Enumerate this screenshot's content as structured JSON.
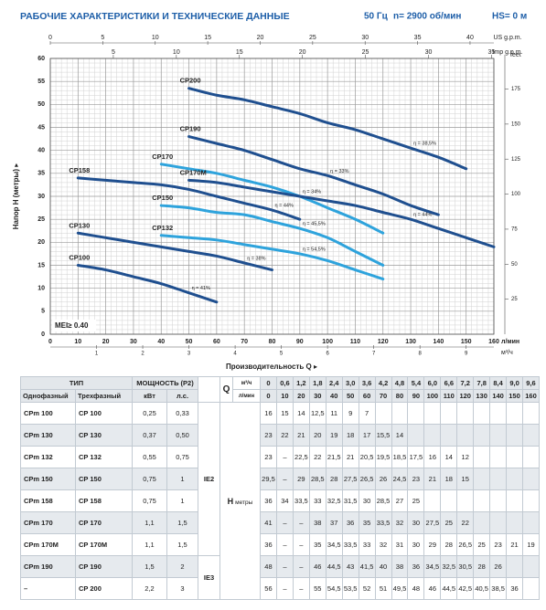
{
  "chart_data": {
    "type": "line",
    "title": "РАБОЧИЕ ХАРАКТЕРИСТИКИ И ТЕХНИЧЕСКИЕ ДАННЫЕ",
    "frequency": "50 Гц",
    "speed": "n= 2900 об/мин",
    "suction_head": "HS= 0 м",
    "x_label": "Производительность Q ▸",
    "y_label": "Напор H (метры) ▸",
    "x_unit": "л/мин",
    "y2_label": "feet",
    "x2_label": "US g.p.m.",
    "x3_label": "Imp g.p.m.",
    "x4_label": "м³/ч",
    "mei": "MEI≥ 0.40",
    "x": [
      0,
      10,
      20,
      30,
      40,
      50,
      60,
      70,
      80,
      90,
      100,
      110,
      120,
      130,
      140,
      150,
      160
    ],
    "xlim": [
      0,
      160
    ],
    "xticks": [
      0,
      10,
      20,
      30,
      40,
      50,
      60,
      70,
      80,
      90,
      100,
      110,
      120,
      130,
      140,
      150,
      160
    ],
    "ylim": [
      0,
      60
    ],
    "yticks": [
      0,
      5,
      10,
      15,
      20,
      25,
      30,
      35,
      40,
      45,
      50,
      55,
      60
    ],
    "y2lim": [
      0,
      196.85
    ],
    "y2ticks": [
      25,
      50,
      75,
      100,
      125,
      150,
      175
    ],
    "x2lim": [
      0,
      42.27
    ],
    "x2ticks": [
      0,
      5,
      10,
      15,
      20,
      25,
      30,
      35,
      40
    ],
    "x3lim": [
      0,
      35.19
    ],
    "x3ticks": [
      5,
      10,
      15,
      20,
      25,
      30,
      35
    ],
    "x4lim": [
      0,
      9.6
    ],
    "x4ticks": [
      1,
      2,
      3,
      4,
      5,
      6,
      7,
      8,
      9
    ],
    "grid": true,
    "series": [
      {
        "name": "CP100",
        "color": "#1f4f8f",
        "efficiency": "η = 41%",
        "values": [
          null,
          15,
          14,
          12.5,
          11,
          9,
          7,
          null,
          null,
          null,
          null,
          null,
          null,
          null,
          null,
          null,
          null
        ]
      },
      {
        "name": "CP130",
        "color": "#1f4f8f",
        "efficiency": "η = 38%",
        "values": [
          null,
          22,
          21,
          20,
          19,
          18,
          17,
          15.5,
          14,
          null,
          null,
          null,
          null,
          null,
          null,
          null,
          null
        ]
      },
      {
        "name": "CP132",
        "color": "#2ea3dc",
        "efficiency": "η = 54,5%",
        "values": [
          null,
          null,
          null,
          null,
          21.5,
          21,
          20.5,
          19.5,
          18.5,
          17.5,
          16,
          14,
          12,
          null,
          null,
          null,
          null
        ]
      },
      {
        "name": "CP150",
        "color": "#2ea3dc",
        "efficiency": "η = 45,5%",
        "values": [
          null,
          null,
          null,
          null,
          28,
          27.5,
          26.5,
          26,
          24.5,
          23,
          21,
          18,
          15,
          null,
          null,
          null,
          null
        ]
      },
      {
        "name": "CP158",
        "color": "#1f4f8f",
        "efficiency": "η = 44%",
        "values": [
          null,
          34,
          33.5,
          33,
          32.5,
          31.5,
          30,
          28.5,
          27,
          25,
          null,
          null,
          null,
          null,
          null,
          null,
          null
        ]
      },
      {
        "name": "CP170",
        "color": "#2ea3dc",
        "efficiency": "η = 34%",
        "values": [
          null,
          null,
          null,
          null,
          37,
          36,
          35,
          33.5,
          32,
          30,
          27.5,
          25,
          22,
          null,
          null,
          null,
          null
        ]
      },
      {
        "name": "CP170M",
        "color": "#1f4f8f",
        "efficiency": "η = 44%",
        "values": [
          null,
          null,
          null,
          null,
          null,
          33.5,
          33,
          32,
          31,
          30,
          29,
          28,
          26.5,
          25,
          23,
          21,
          19
        ]
      },
      {
        "name": "CP190",
        "color": "#1f4f8f",
        "efficiency": "η = 33%",
        "values": [
          null,
          null,
          null,
          null,
          null,
          43,
          41.5,
          40,
          38,
          36,
          34.5,
          32.5,
          30.5,
          28,
          26,
          null,
          null
        ]
      },
      {
        "name": "CP200",
        "color": "#1f4f8f",
        "efficiency": "η = 38,5%",
        "values": [
          null,
          null,
          null,
          null,
          null,
          53.5,
          52,
          51,
          49.5,
          48,
          46,
          44.5,
          42.5,
          40.5,
          38.5,
          36,
          null
        ]
      }
    ]
  },
  "table": {
    "header": {
      "type": "ТИП",
      "power": "МОЩНОСТЬ (P2)",
      "q": "Q",
      "q_units": [
        "м³/ч",
        "л/мин"
      ],
      "single": "Однофазный",
      "three": "Трехфазный",
      "kw": "кВт",
      "hp": "л.с.",
      "h": "H",
      "h_unit": "метры"
    },
    "q_m3h": [
      "0",
      "0,6",
      "1,2",
      "1,8",
      "2,4",
      "3,0",
      "3,6",
      "4,2",
      "4,8",
      "5,4",
      "6,0",
      "6,6",
      "7,2",
      "7,8",
      "8,4",
      "9,0",
      "9,6"
    ],
    "q_lmin": [
      "0",
      "10",
      "20",
      "30",
      "40",
      "50",
      "60",
      "70",
      "80",
      "90",
      "100",
      "110",
      "120",
      "130",
      "140",
      "150",
      "160"
    ],
    "ie": [
      "IE2",
      "IE3"
    ],
    "rows": [
      {
        "single": "CPm 100",
        "three": "CP 100",
        "kw": "0,25",
        "hp": "0,33",
        "h": [
          "16",
          "15",
          "14",
          "12,5",
          "11",
          "9",
          "7"
        ]
      },
      {
        "single": "CPm 130",
        "three": "CP 130",
        "kw": "0,37",
        "hp": "0,50",
        "h": [
          "23",
          "22",
          "21",
          "20",
          "19",
          "18",
          "17",
          "15,5",
          "14"
        ]
      },
      {
        "single": "CPm 132",
        "three": "CP 132",
        "kw": "0,55",
        "hp": "0,75",
        "h": [
          "23",
          "–",
          "22,5",
          "22",
          "21,5",
          "21",
          "20,5",
          "19,5",
          "18,5",
          "17,5",
          "16",
          "14",
          "12"
        ]
      },
      {
        "single": "CPm 150",
        "three": "CP 150",
        "kw": "0,75",
        "hp": "1",
        "h": [
          "29,5",
          "–",
          "29",
          "28,5",
          "28",
          "27,5",
          "26,5",
          "26",
          "24,5",
          "23",
          "21",
          "18",
          "15"
        ]
      },
      {
        "single": "CPm 158",
        "three": "CP 158",
        "kw": "0,75",
        "hp": "1",
        "h": [
          "36",
          "34",
          "33,5",
          "33",
          "32,5",
          "31,5",
          "30",
          "28,5",
          "27",
          "25"
        ]
      },
      {
        "single": "CPm 170",
        "three": "CP 170",
        "kw": "1,1",
        "hp": "1,5",
        "h": [
          "41",
          "–",
          "–",
          "38",
          "37",
          "36",
          "35",
          "33,5",
          "32",
          "30",
          "27,5",
          "25",
          "22"
        ]
      },
      {
        "single": "CPm 170M",
        "three": "CP 170M",
        "kw": "1,1",
        "hp": "1,5",
        "h": [
          "36",
          "–",
          "–",
          "35",
          "34,5",
          "33,5",
          "33",
          "32",
          "31",
          "30",
          "29",
          "28",
          "26,5",
          "25",
          "23",
          "21",
          "19"
        ]
      },
      {
        "single": "CPm 190",
        "three": "CP 190",
        "kw": "1,5",
        "hp": "2",
        "h": [
          "48",
          "–",
          "–",
          "46",
          "44,5",
          "43",
          "41,5",
          "40",
          "38",
          "36",
          "34,5",
          "32,5",
          "30,5",
          "28",
          "26"
        ]
      },
      {
        "single": "–",
        "three": "CP 200",
        "kw": "2,2",
        "hp": "3",
        "h": [
          "56",
          "–",
          "–",
          "55",
          "54,5",
          "53,5",
          "52",
          "51",
          "49,5",
          "48",
          "46",
          "44,5",
          "42,5",
          "40,5",
          "38,5",
          "36"
        ]
      }
    ]
  }
}
